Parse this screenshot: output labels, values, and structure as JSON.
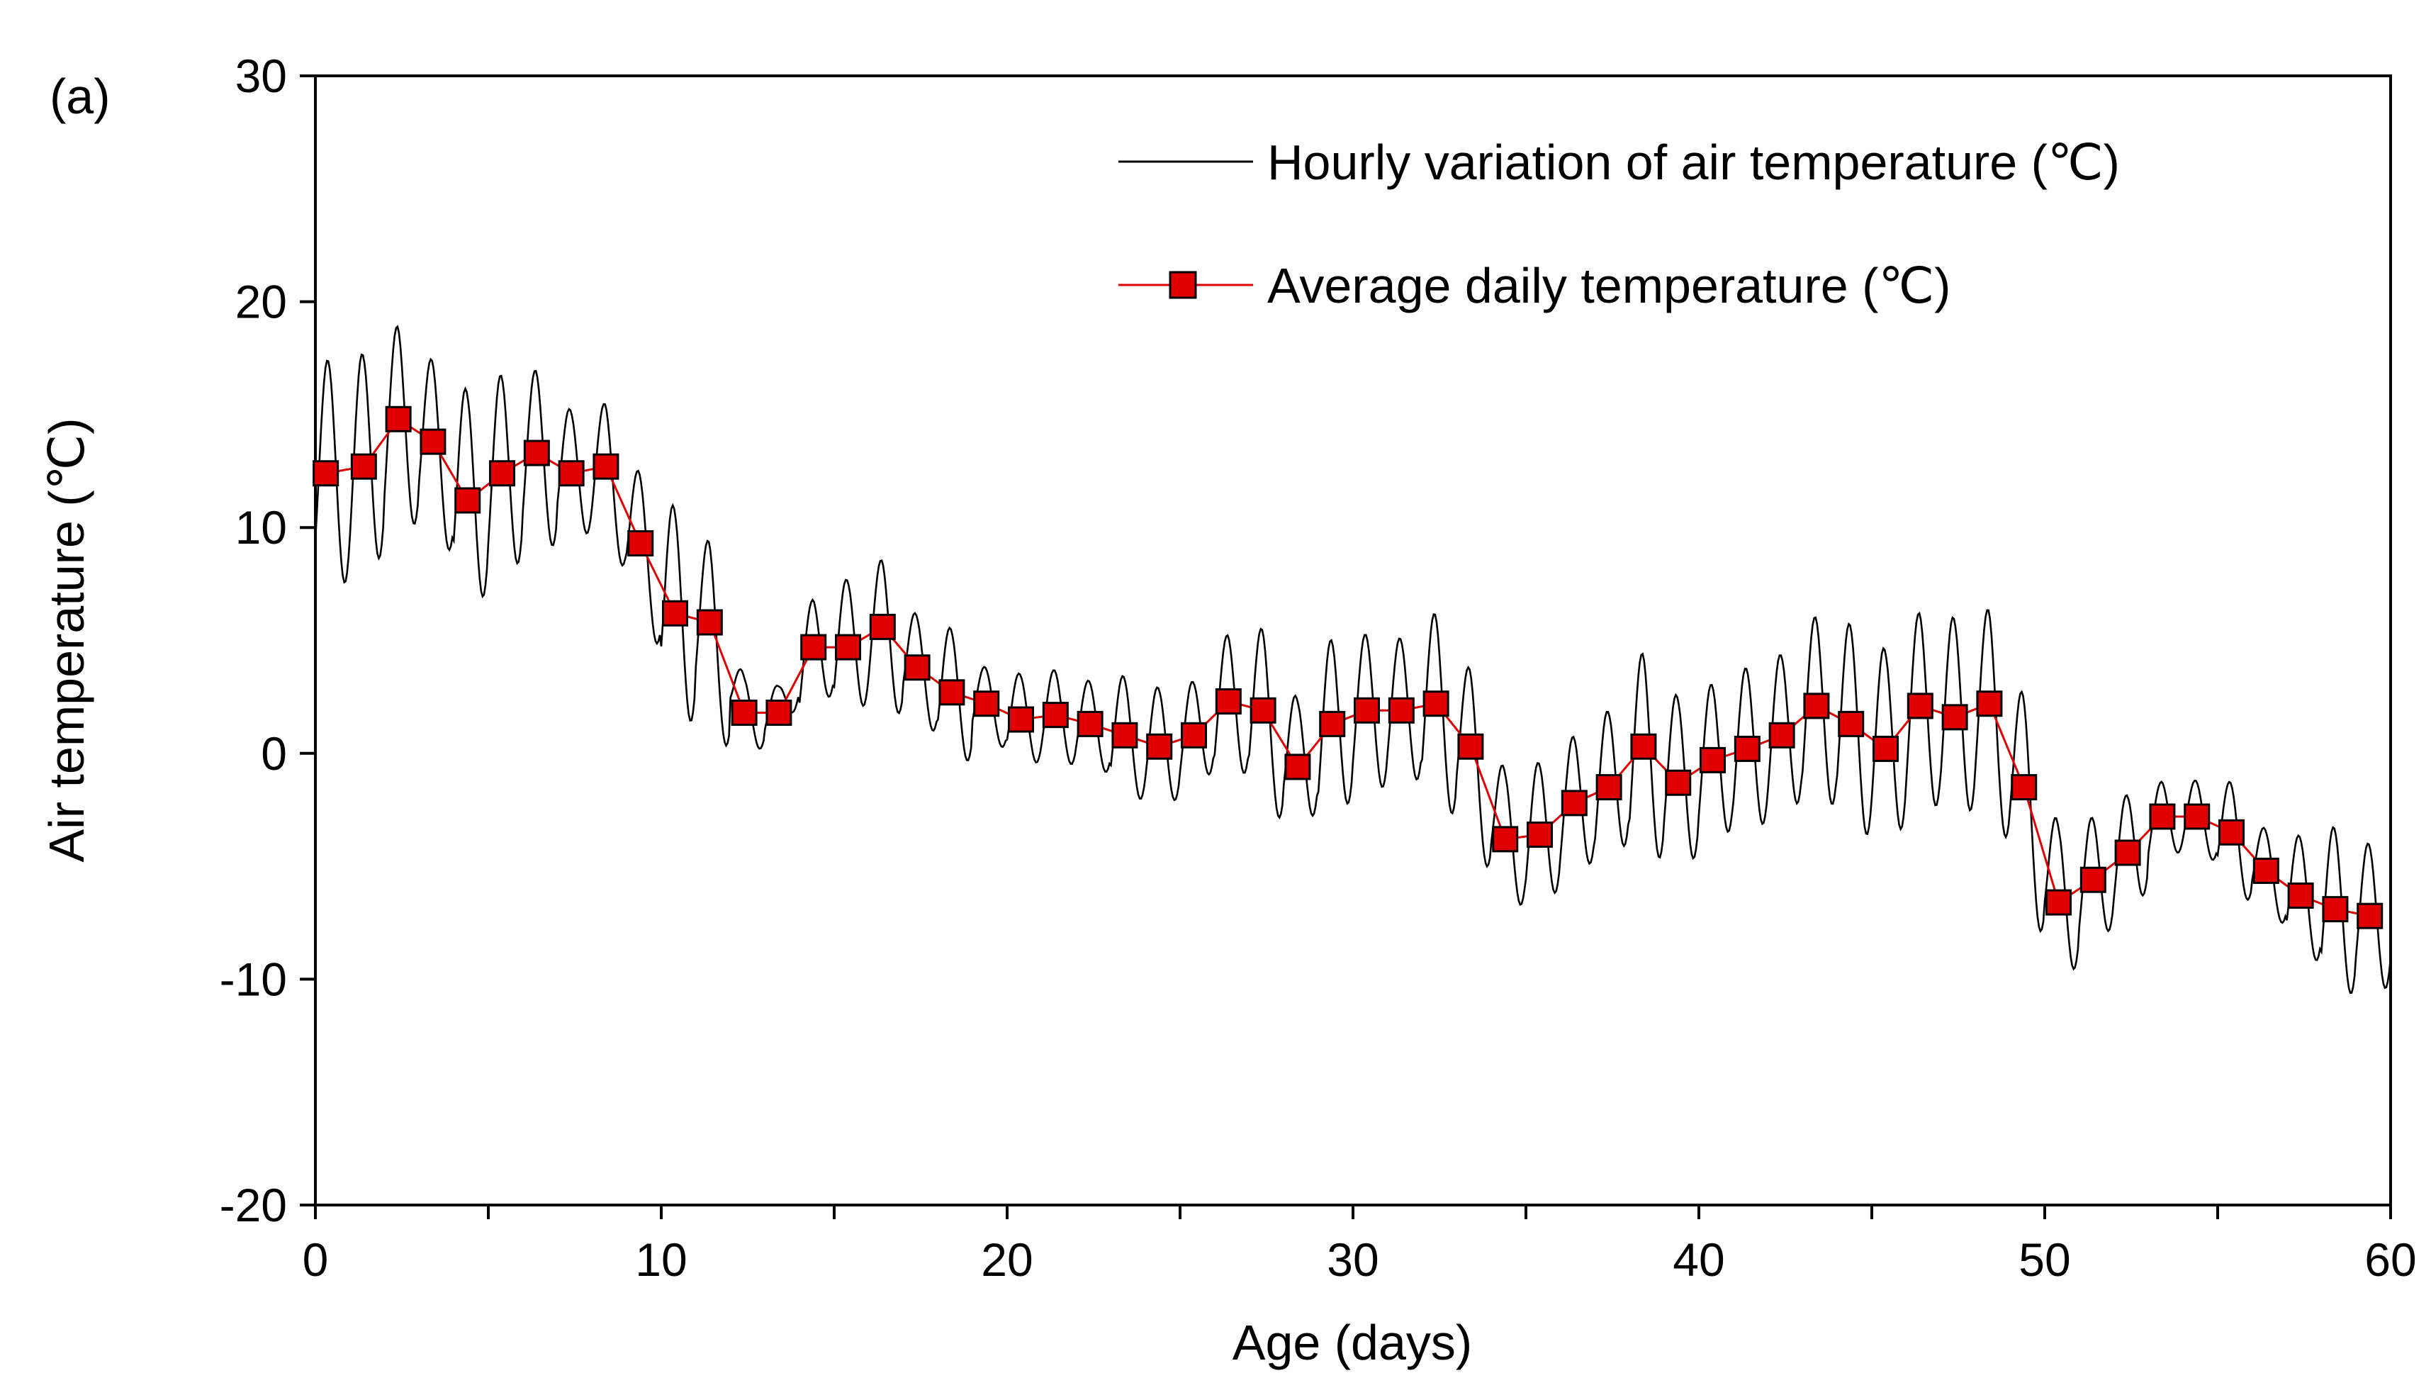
{
  "panel_label": "(a)",
  "chart_data": {
    "type": "line",
    "xlabel": "Age (days)",
    "ylabel": "Air temperature (℃)",
    "xlim": [
      0,
      60
    ],
    "ylim": [
      -20,
      30
    ],
    "x_ticks": [
      0,
      10,
      20,
      30,
      40,
      50,
      60
    ],
    "y_ticks": [
      -20,
      -10,
      0,
      10,
      20,
      30
    ],
    "grid": false,
    "legend": {
      "placement": "top-right",
      "entries": [
        "Hourly variation of air temperature (℃)",
        "Average daily temperature (℃)"
      ]
    },
    "colors": {
      "hourly": "#000000",
      "daily": "#e00000",
      "marker_edge": "#000000"
    },
    "series": [
      {
        "name": "Hourly variation of air temperature (℃)",
        "style": "thin black line, hourly samples oscillating around the daily mean",
        "daily_amplitude": [
          5.0,
          5.0,
          4.2,
          3.6,
          4.8,
          4.4,
          3.7,
          2.8,
          2.8,
          3.0,
          4.6,
          3.6,
          1.6,
          1.2,
          2.2,
          3.0,
          3.0,
          2.3,
          2.8,
          1.6,
          2.0,
          2.0,
          1.9,
          2.6,
          2.6,
          2.4,
          3.0,
          3.6,
          3.0,
          3.8,
          3.4,
          3.2,
          4.0,
          3.4,
          3.0,
          3.2,
          3.0,
          3.4,
          4.2,
          3.8,
          3.4,
          3.6,
          3.6,
          4.0,
          4.4,
          4.4,
          4.2,
          4.4,
          4.2,
          4.0,
          3.4,
          2.8,
          2.6,
          1.6,
          1.6,
          2.2,
          1.8,
          2.6,
          3.6,
          3.2
        ]
      },
      {
        "name": "Average daily temperature (℃)",
        "style": "red line with red square markers",
        "x": [
          0.3,
          1.4,
          2.4,
          3.4,
          4.4,
          5.4,
          6.4,
          7.4,
          8.4,
          9.4,
          10.4,
          11.4,
          12.4,
          13.4,
          14.4,
          15.4,
          16.4,
          17.4,
          18.4,
          19.4,
          20.4,
          21.4,
          22.4,
          23.4,
          24.4,
          25.4,
          26.4,
          27.4,
          28.4,
          29.4,
          30.4,
          31.4,
          32.4,
          33.4,
          34.4,
          35.4,
          36.4,
          37.4,
          38.4,
          39.4,
          40.4,
          41.4,
          42.4,
          43.4,
          44.4,
          45.4,
          46.4,
          47.4,
          48.4,
          49.4,
          50.4,
          51.4,
          52.4,
          53.4,
          54.4,
          55.4,
          56.4,
          57.4,
          58.4,
          59.4
        ],
        "values": [
          12.4,
          12.7,
          14.8,
          13.8,
          11.2,
          12.4,
          13.3,
          12.4,
          12.7,
          9.3,
          6.2,
          5.8,
          1.8,
          1.8,
          4.7,
          4.7,
          5.6,
          3.8,
          2.7,
          2.2,
          1.5,
          1.7,
          1.3,
          0.8,
          0.3,
          0.8,
          2.3,
          1.9,
          -0.6,
          1.3,
          1.9,
          1.9,
          2.2,
          0.3,
          -3.8,
          -3.6,
          -2.2,
          -1.5,
          0.3,
          -1.3,
          -0.3,
          0.2,
          0.8,
          2.1,
          1.3,
          0.2,
          2.1,
          1.6,
          2.2,
          -1.5,
          -6.6,
          -5.6,
          -4.4,
          -2.8,
          -2.8,
          -3.5,
          -5.2,
          -6.3,
          -6.9,
          -7.2
        ]
      }
    ]
  }
}
